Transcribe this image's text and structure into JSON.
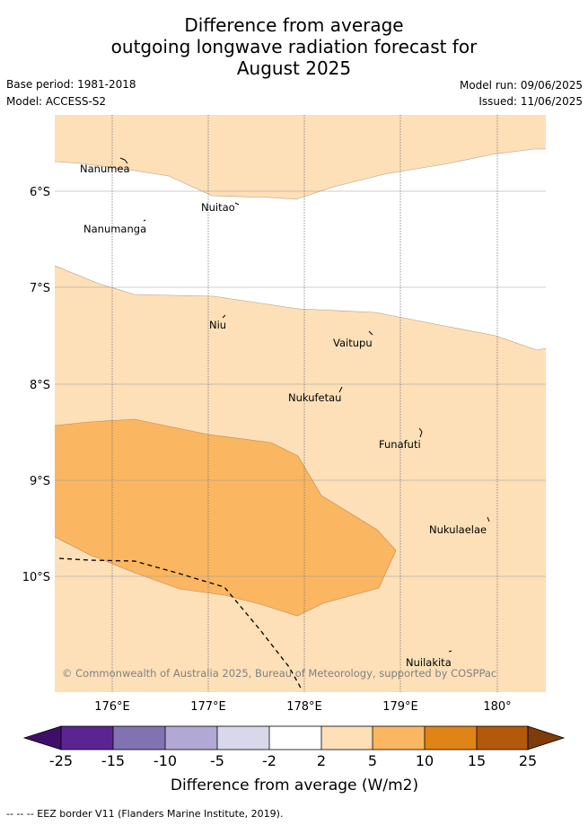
{
  "title_lines": [
    "Difference from average",
    "outgoing longwave radiation forecast for",
    "August 2025"
  ],
  "base_period": "Base period: 1981-2018",
  "model": "Model: ACCESS-S2",
  "model_run": "Model run: 09/06/2025",
  "issued": "Issued: 11/06/2025",
  "map": {
    "lat_labels": [
      "6°S",
      "7°S",
      "8°S",
      "9°S",
      "10°S"
    ],
    "lon_labels": [
      "176°E",
      "177°E",
      "178°E",
      "179°E",
      "180°"
    ],
    "places": [
      "Nanumea",
      "Nuitao",
      "Nanumanga",
      "Niu",
      "Vaitupu",
      "Nukufetau",
      "Funafuti",
      "Nukulaelae",
      "Nuilakita"
    ],
    "copyright": "© Commonwealth of Australia 2025, Bureau of Meteorology, supported by COSPPac",
    "shading": [
      {
        "category": "2 to 5",
        "color": "#fde0b8"
      },
      {
        "category": "5 to 10",
        "color": "#fbb661"
      }
    ],
    "eez_border": "dashed black line"
  },
  "colorbar": {
    "ticks": [
      "-25",
      "-15",
      "-10",
      "-5",
      "-2",
      "2",
      "5",
      "10",
      "15",
      "25"
    ],
    "colors": [
      "#3f0e6b",
      "#5a2590",
      "#8172b2",
      "#b1a9d3",
      "#d9d8ea",
      "#ffffff",
      "#fde0b8",
      "#fbb661",
      "#e08417",
      "#b25a09",
      "#7f3b08"
    ],
    "label": "Difference from average (W/m2)"
  },
  "footnote": "-- -- -- EEZ border V11 (Flanders Marine Institute, 2019)."
}
